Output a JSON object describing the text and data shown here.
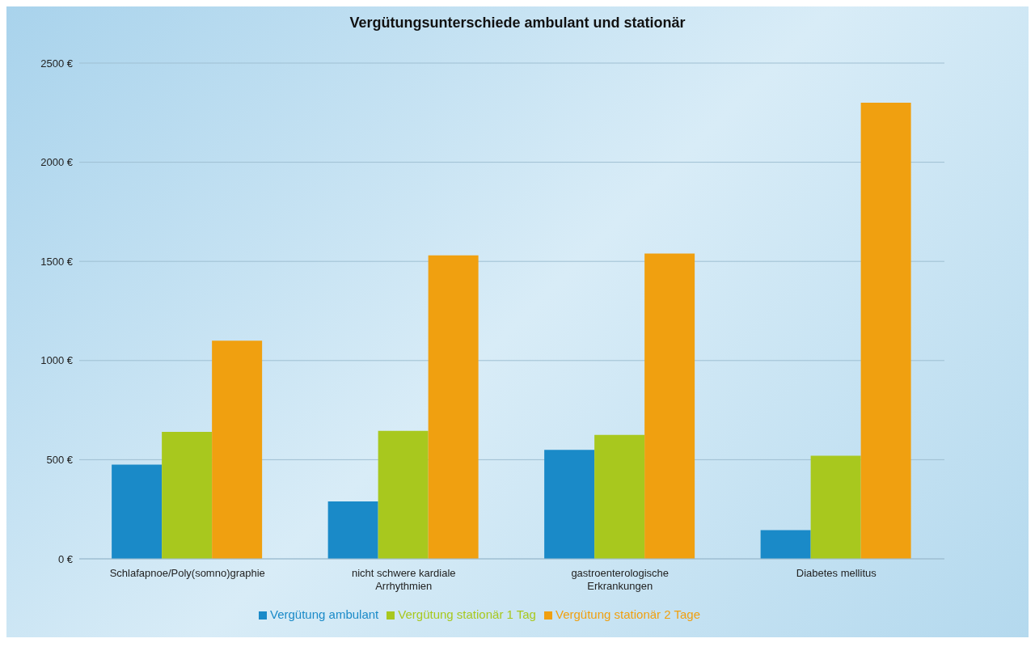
{
  "chart_data": {
    "type": "bar",
    "title": "Vergütungsunterschiede ambulant und stationär",
    "categories": [
      "Schlafapnoe/Poly(somno)graphie",
      "nicht schwere kardiale Arrhythmien",
      "gastroenterologische Erkrankungen",
      "Diabetes mellitus"
    ],
    "series": [
      {
        "name": "Vergütung ambulant",
        "color": "#1a8ac8",
        "values": [
          475,
          290,
          550,
          145
        ]
      },
      {
        "name": "Vergütung stationär 1 Tag",
        "color": "#a8c81e",
        "values": [
          640,
          645,
          625,
          520
        ]
      },
      {
        "name": "Vergütung stationär 2 Tage",
        "color": "#f0a010",
        "values": [
          1100,
          1530,
          1540,
          2300
        ]
      }
    ],
    "ylim": [
      0,
      2500
    ],
    "yticks": [
      {
        "value": 0,
        "label": "0 €"
      },
      {
        "value": 500,
        "label": "500 €"
      },
      {
        "value": 1000,
        "label": "1000 €"
      },
      {
        "value": 1500,
        "label": "1500 €"
      },
      {
        "value": 2000,
        "label": "2000 €"
      },
      {
        "value": 2500,
        "label": "2500 €"
      }
    ],
    "grid": "y",
    "legend": "bottom"
  }
}
